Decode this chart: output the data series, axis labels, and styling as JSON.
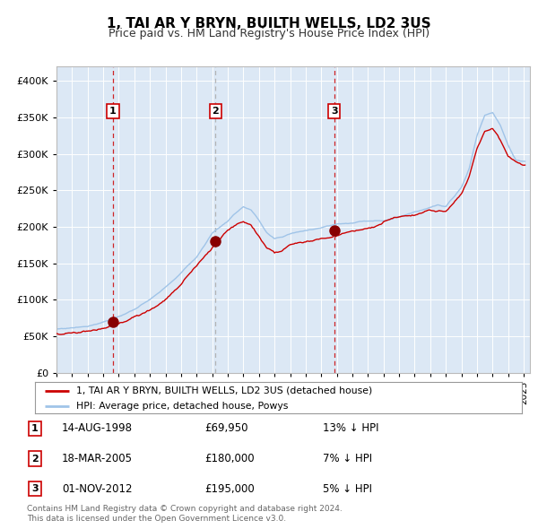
{
  "title": "1, TAI AR Y BRYN, BUILTH WELLS, LD2 3US",
  "subtitle": "Price paid vs. HM Land Registry's House Price Index (HPI)",
  "legend_line1": "1, TAI AR Y BRYN, BUILTH WELLS, LD2 3US (detached house)",
  "legend_line2": "HPI: Average price, detached house, Powys",
  "transactions": [
    {
      "num": 1,
      "date": "14-AUG-1998",
      "price": 69950,
      "pct": "13%",
      "dir": "↓"
    },
    {
      "num": 2,
      "date": "18-MAR-2005",
      "price": 180000,
      "pct": "7%",
      "dir": "↓"
    },
    {
      "num": 3,
      "date": "01-NOV-2012",
      "price": 195000,
      "pct": "5%",
      "dir": "↓"
    }
  ],
  "transaction_years": [
    1998.62,
    2005.21,
    2012.84
  ],
  "transaction_prices": [
    69950,
    180000,
    195000
  ],
  "vline_styles": [
    "red_dashed",
    "grey_dashed",
    "red_dashed"
  ],
  "footnote1": "Contains HM Land Registry data © Crown copyright and database right 2024.",
  "footnote2": "This data is licensed under the Open Government Licence v3.0.",
  "ylim": [
    0,
    420000
  ],
  "yticks": [
    0,
    50000,
    100000,
    150000,
    200000,
    250000,
    300000,
    350000,
    400000
  ],
  "bg_color": "#dce8f5",
  "line_color_red": "#cc0000",
  "line_color_blue": "#a0c4e8",
  "vline_color_red": "#cc0000",
  "vline_color_grey": "#aaaaaa",
  "grid_color": "#ffffff",
  "marker_color": "#880000"
}
